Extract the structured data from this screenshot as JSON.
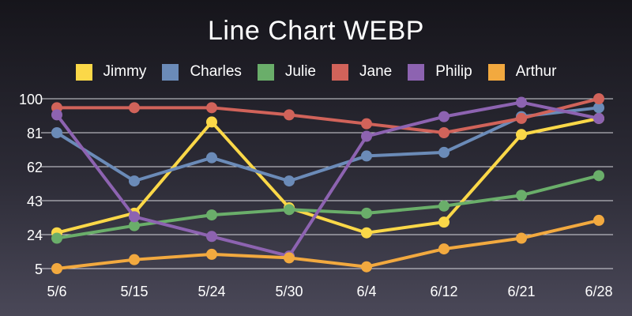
{
  "chart_data": {
    "type": "line",
    "title": "Line Chart WEBP",
    "xlabel": "",
    "ylabel": "",
    "categories": [
      "5/6",
      "5/15",
      "5/24",
      "5/30",
      "6/4",
      "6/12",
      "6/21",
      "6/28"
    ],
    "ylim": [
      5,
      100
    ],
    "yticks": [
      5,
      24,
      43,
      62,
      81,
      100
    ],
    "grid": true,
    "legend_position": "top",
    "series": [
      {
        "name": "Jimmy",
        "color": "#fbd848",
        "values": [
          25,
          36,
          87,
          39,
          25,
          31,
          80,
          89
        ]
      },
      {
        "name": "Charles",
        "color": "#6b8bb8",
        "values": [
          81,
          54,
          67,
          54,
          68,
          70,
          90,
          95
        ]
      },
      {
        "name": "Julie",
        "color": "#6aae6a",
        "values": [
          22,
          29,
          35,
          38,
          36,
          40,
          46,
          57
        ]
      },
      {
        "name": "Jane",
        "color": "#d1635a",
        "values": [
          95,
          95,
          95,
          91,
          86,
          81,
          89,
          100
        ]
      },
      {
        "name": "Philip",
        "color": "#8d63b1",
        "values": [
          91,
          34,
          23,
          12,
          79,
          90,
          98,
          89
        ]
      },
      {
        "name": "Arthur",
        "color": "#f2a93f",
        "values": [
          5,
          10,
          13,
          11,
          6,
          16,
          22,
          32
        ]
      }
    ]
  }
}
